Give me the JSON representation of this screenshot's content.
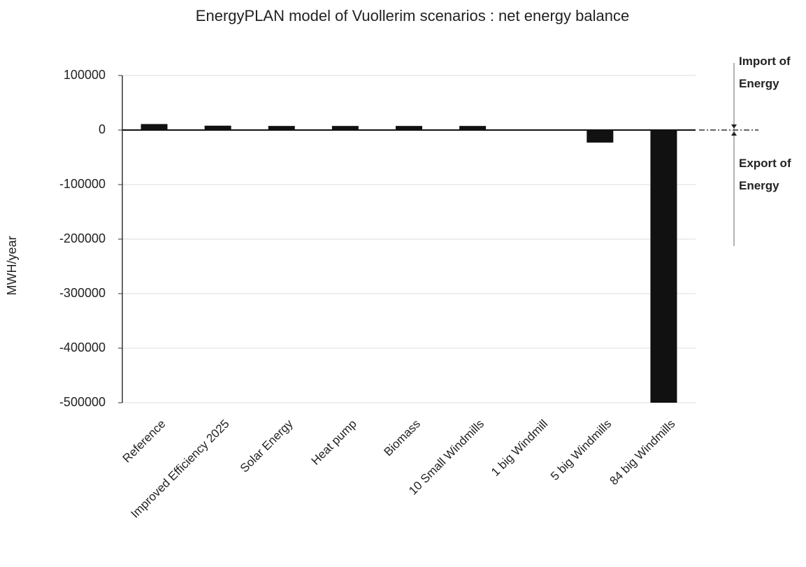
{
  "chart_data": {
    "type": "bar",
    "title": "EnergyPLAN model of  Vuollerim scenarios : net energy balance",
    "ylabel": "MWH/year",
    "categories": [
      "Reference",
      "Improved Efficiency 2025",
      "Solar Energy",
      "Heat pump",
      "Biomass",
      "10 Small Windmills",
      "1 big Windmill",
      "5 big Windmills",
      "84 big Windmills"
    ],
    "values": [
      11000,
      8000,
      7500,
      7500,
      7500,
      7500,
      -1000,
      -23000,
      -500000
    ],
    "color": "#111111",
    "ylim": [
      -500000,
      100000
    ],
    "yticks": [
      -500000,
      -400000,
      -300000,
      -200000,
      -100000,
      0,
      100000
    ],
    "grid": true,
    "annotations": [
      "Import of Energy",
      "Export of Energy"
    ]
  }
}
